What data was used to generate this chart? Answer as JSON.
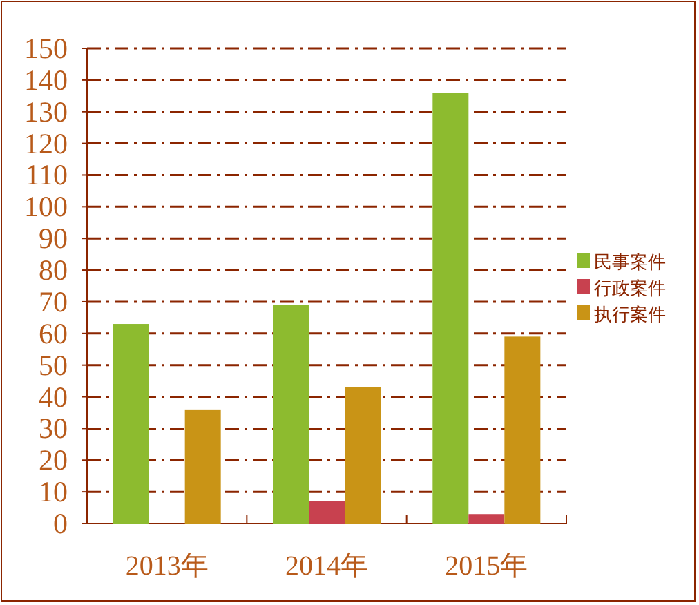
{
  "chart_data": {
    "type": "bar",
    "categories": [
      "2013年",
      "2014年",
      "2015年"
    ],
    "series": [
      {
        "name": "民事案件",
        "color": "#8dbb2f",
        "values": [
          63,
          69,
          136
        ]
      },
      {
        "name": "行政案件",
        "color": "#c8414f",
        "values": [
          0,
          7,
          3
        ]
      },
      {
        "name": "执行案件",
        "color": "#c99416",
        "values": [
          36,
          43,
          59
        ]
      }
    ],
    "ylim": [
      0,
      150
    ],
    "yticks": [
      0,
      10,
      20,
      30,
      40,
      50,
      60,
      70,
      80,
      90,
      100,
      110,
      120,
      130,
      140,
      150
    ],
    "grid": "y",
    "legend": "right"
  }
}
